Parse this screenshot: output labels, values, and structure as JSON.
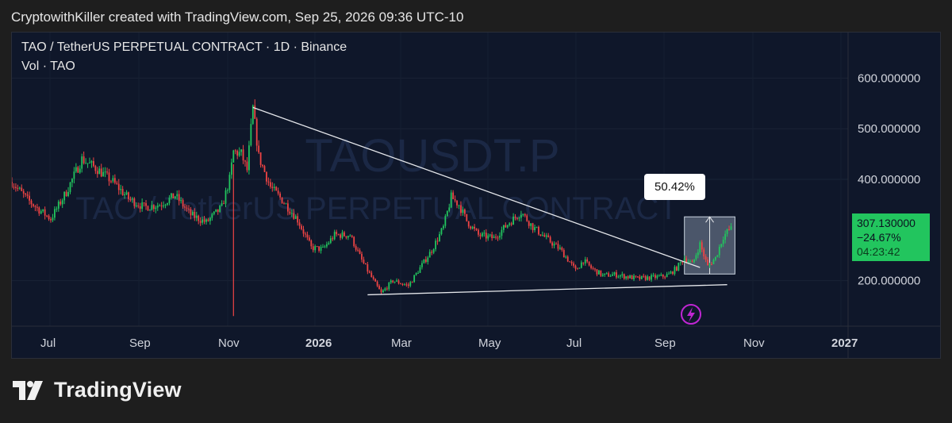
{
  "header": {
    "attribution": "CryptowithKiller created with TradingView.com, Sep 25, 2026 09:36 UTC-10"
  },
  "chart": {
    "symbol_line": "TAO / TetherUS PERPETUAL CONTRACT · 1D · Binance",
    "volume_line": "Vol · TAO",
    "watermark_big": "TAOUSDT.P",
    "watermark_small": "TAO / TetherUS PERPETUAL CONTRACT",
    "price_tag": {
      "price": "307.130000",
      "change": "−24.67%",
      "countdown": "04:23:42"
    },
    "measure_label": "50.42%"
  },
  "footer": {
    "brand": "TradingView"
  },
  "colors": {
    "up": "#22c55e",
    "down": "#ef4444",
    "background": "#0f172a",
    "price_tag": "#22c55e",
    "flash_icon": "#c026d3"
  },
  "chart_data": {
    "type": "candlestick",
    "ylim": [
      110,
      690
    ],
    "y_ticks": [
      {
        "value": 600,
        "label": "600.000000"
      },
      {
        "value": 500,
        "label": "500.000000"
      },
      {
        "value": 400,
        "label": "400.000000"
      },
      {
        "value": 200,
        "label": "200.000000"
      }
    ],
    "x_ticks": [
      "Jul",
      "Sep",
      "Nov",
      "2026",
      "Mar",
      "May",
      "Jul",
      "Sep",
      "Nov",
      "2027"
    ],
    "price_path": [
      [
        0,
        395
      ],
      [
        8,
        360
      ],
      [
        14,
        340
      ],
      [
        20,
        322
      ],
      [
        28,
        375
      ],
      [
        36,
        440
      ],
      [
        44,
        420
      ],
      [
        52,
        395
      ],
      [
        60,
        362
      ],
      [
        68,
        345
      ],
      [
        76,
        350
      ],
      [
        84,
        368
      ],
      [
        92,
        330
      ],
      [
        100,
        315
      ],
      [
        108,
        345
      ],
      [
        112,
        400
      ],
      [
        114,
        455
      ],
      [
        118,
        450
      ],
      [
        121,
        418
      ],
      [
        124,
        540
      ],
      [
        127,
        445
      ],
      [
        133,
        385
      ],
      [
        140,
        355
      ],
      [
        147,
        320
      ],
      [
        154,
        265
      ],
      [
        160,
        262
      ],
      [
        166,
        290
      ],
      [
        174,
        290
      ],
      [
        180,
        240
      ],
      [
        186,
        200
      ],
      [
        190,
        175
      ],
      [
        196,
        200
      ],
      [
        204,
        190
      ],
      [
        210,
        225
      ],
      [
        216,
        260
      ],
      [
        222,
        305
      ],
      [
        226,
        365
      ],
      [
        230,
        350
      ],
      [
        234,
        318
      ],
      [
        240,
        290
      ],
      [
        248,
        284
      ],
      [
        256,
        315
      ],
      [
        262,
        335
      ],
      [
        268,
        306
      ],
      [
        276,
        280
      ],
      [
        282,
        262
      ],
      [
        286,
        242
      ],
      [
        290,
        220
      ],
      [
        294,
        240
      ],
      [
        298,
        225
      ],
      [
        304,
        210
      ],
      [
        310,
        212
      ],
      [
        316,
        208
      ],
      [
        322,
        204
      ],
      [
        328,
        206
      ],
      [
        334,
        208
      ],
      [
        338,
        212
      ],
      [
        342,
        225
      ],
      [
        346,
        245
      ],
      [
        350,
        232
      ],
      [
        354,
        272
      ],
      [
        358,
        228
      ],
      [
        362,
        245
      ],
      [
        366,
        287
      ],
      [
        370,
        305
      ]
    ],
    "annotations": {
      "upper_trendline": [
        [
          124,
          542
        ],
        [
          354,
          226
        ]
      ],
      "lower_trendline": [
        [
          183,
          172
        ],
        [
          368,
          192
        ]
      ],
      "measure_box": {
        "from": [
          346,
          213
        ],
        "to": [
          372,
          326
        ],
        "percent": "50.42%"
      },
      "last_price": 307.13
    },
    "x_day_range": [
      0,
      430
    ]
  }
}
